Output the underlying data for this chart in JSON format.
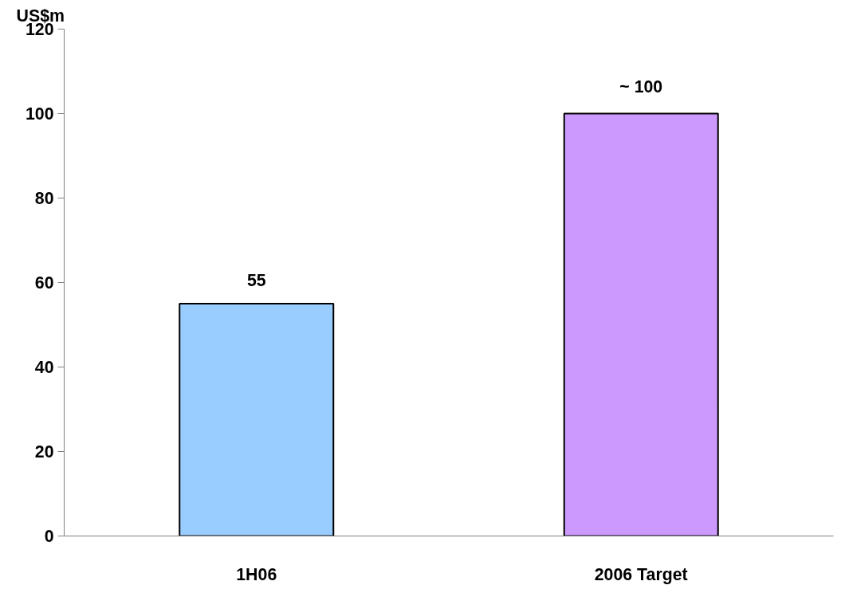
{
  "chart_data": {
    "type": "bar",
    "ylabel": "US$m",
    "categories": [
      "1H06",
      "2006 Target"
    ],
    "values": [
      55,
      100
    ],
    "colors": [
      "#99ccff",
      "#cc99ff"
    ],
    "value_labels": [
      "55",
      "~ 100"
    ],
    "ylim": [
      0,
      120
    ],
    "yticks": [
      0,
      20,
      40,
      60,
      80,
      100,
      120
    ],
    "grid": false
  }
}
